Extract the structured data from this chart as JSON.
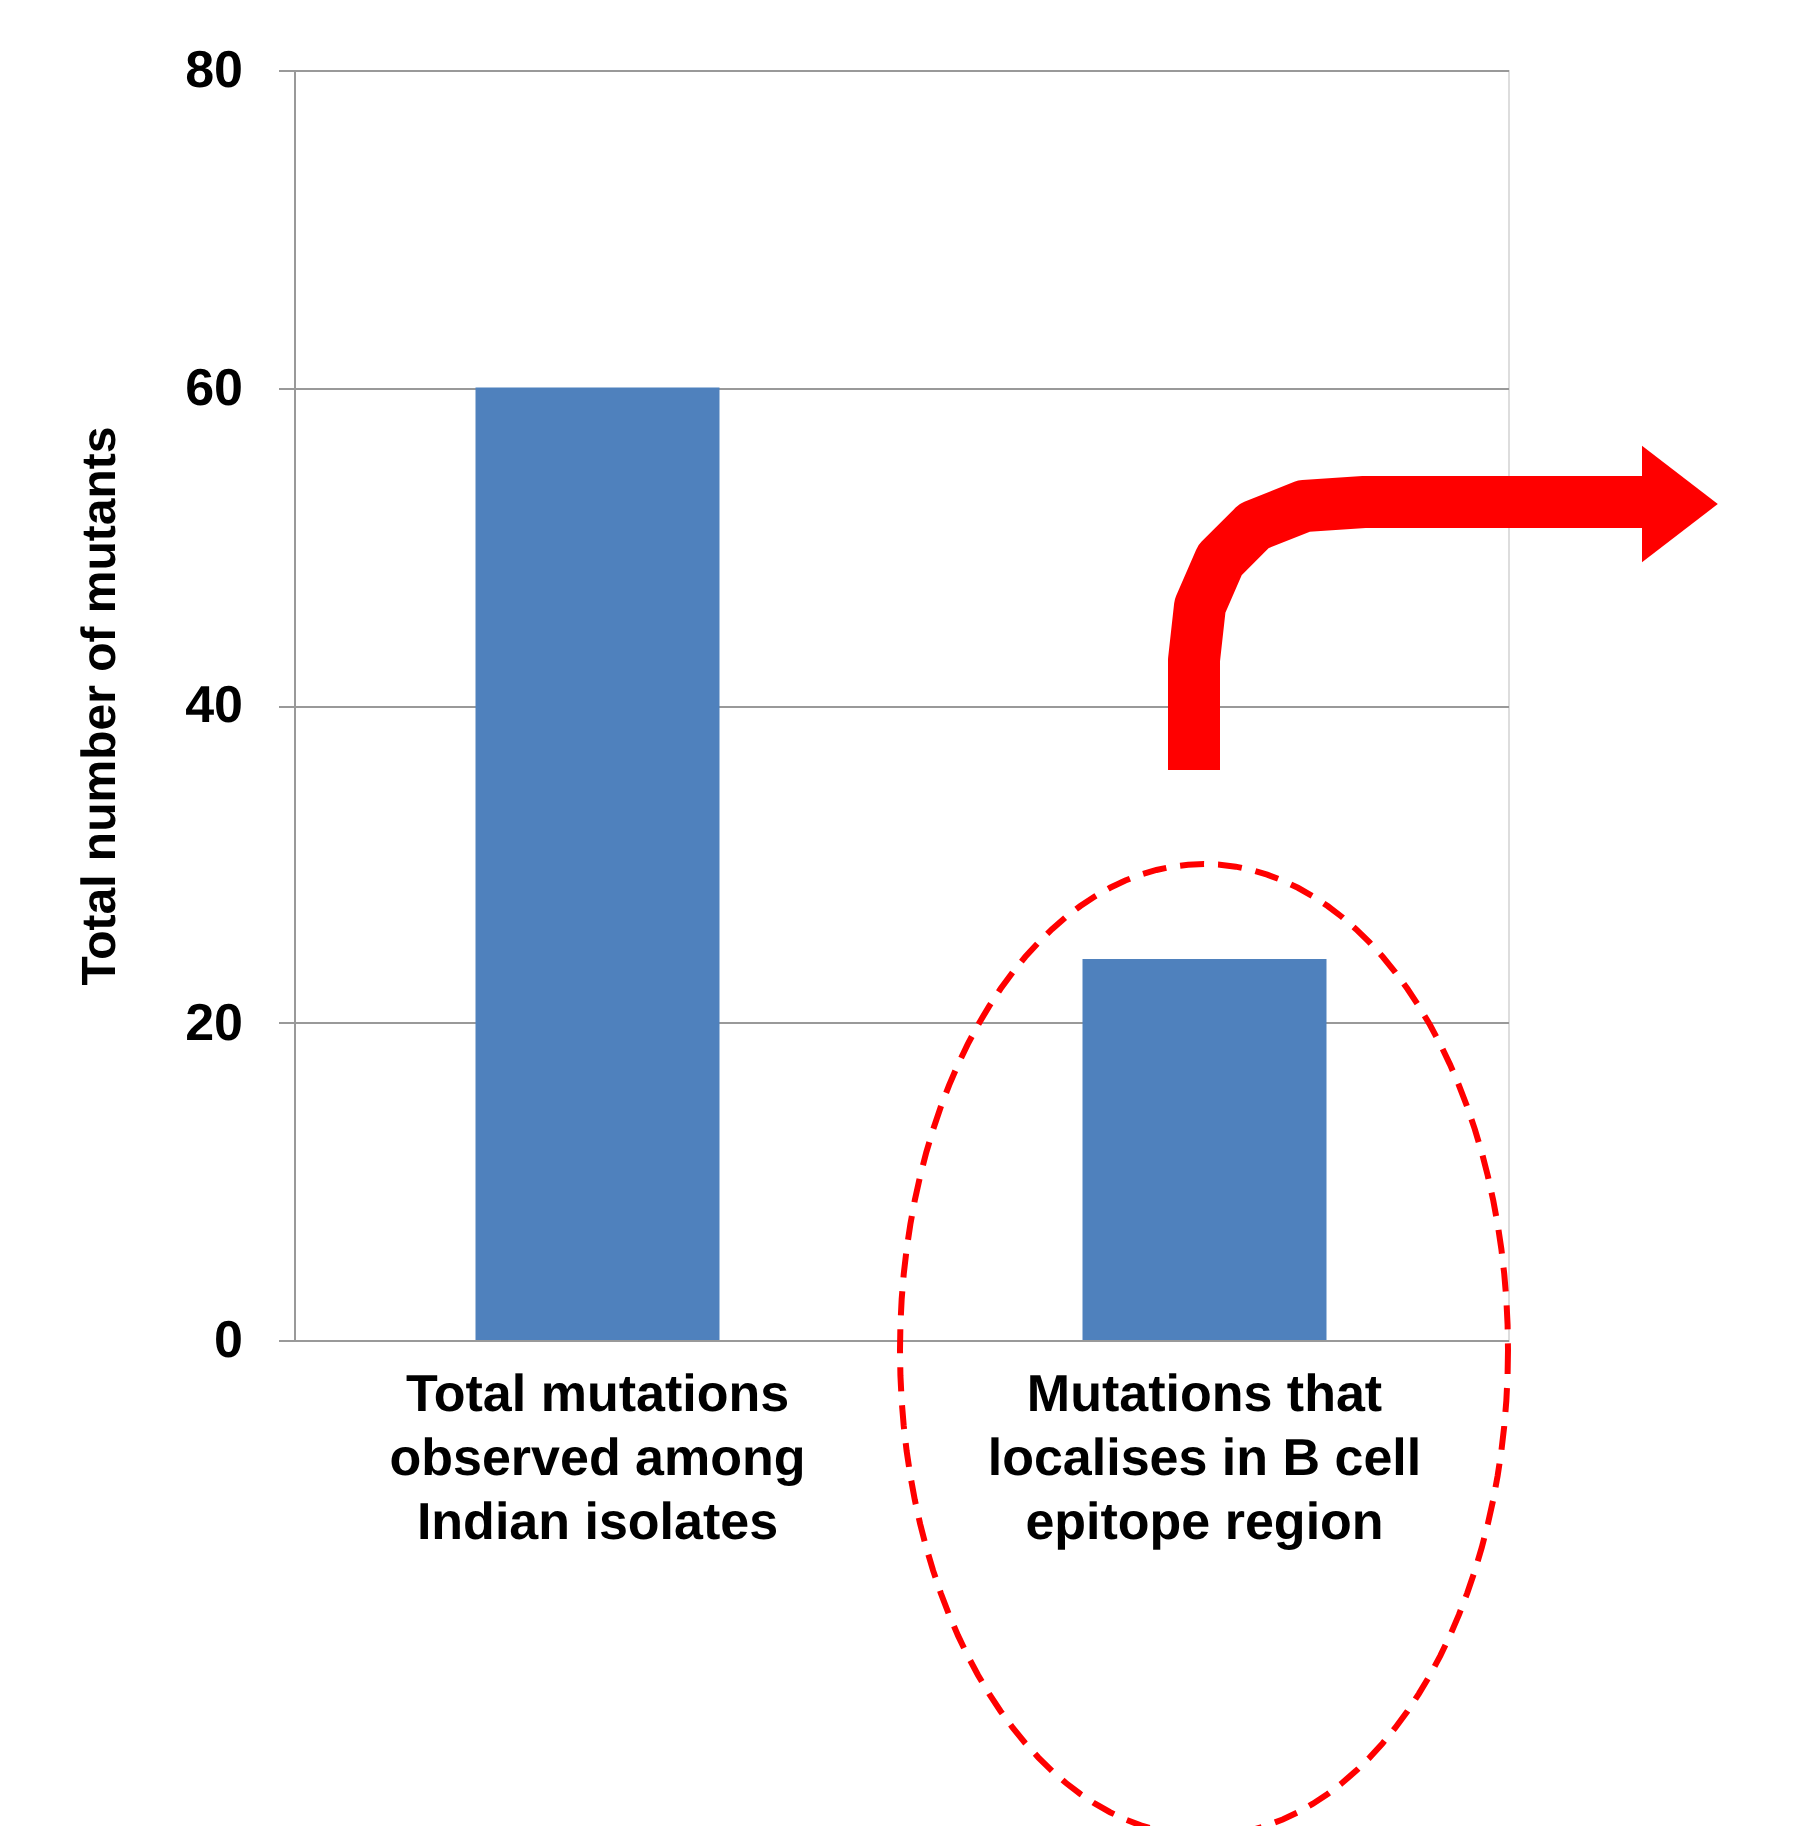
{
  "chart_data": {
    "type": "bar",
    "categories": [
      "Total mutations\nobserved among\nIndian isolates",
      "Mutations that\nlocalises in B cell\nepitope region"
    ],
    "values": [
      60,
      24
    ],
    "color": "#4f81bd",
    "ylabel": "Total number of mutants",
    "ylim": [
      0,
      80
    ],
    "yticks": [
      0,
      20,
      40,
      60,
      80
    ],
    "grid": "y"
  }
}
